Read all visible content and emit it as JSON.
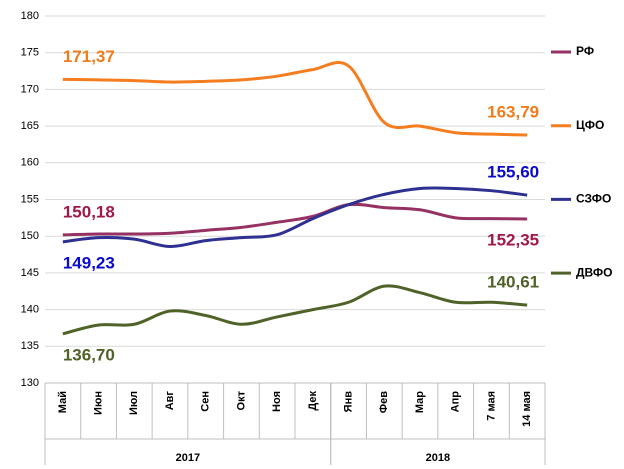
{
  "chart_data": {
    "type": "line",
    "categories": [
      "Май",
      "Июн",
      "Июл",
      "Авг",
      "Сен",
      "Окт",
      "Ноя",
      "Дек",
      "Янв",
      "Фев",
      "Мар",
      "Апр",
      "7 мая",
      "14 мая"
    ],
    "category_groups": [
      {
        "label": "2017",
        "size": 8
      },
      {
        "label": "2018",
        "size": 6
      }
    ],
    "ylim": [
      130,
      180
    ],
    "yticks": [
      130,
      135,
      140,
      145,
      150,
      155,
      160,
      165,
      170,
      175,
      180
    ],
    "grid": true,
    "series": [
      {
        "name": "РФ",
        "color": "#953163",
        "label_color": "#a0174a",
        "values": [
          150.18,
          150.3,
          150.3,
          150.4,
          150.8,
          151.2,
          151.9,
          152.7,
          154.3,
          153.9,
          153.6,
          152.5,
          152.4,
          152.35
        ],
        "value_labels": [
          "150,18",
          null,
          null,
          null,
          null,
          null,
          null,
          null,
          null,
          null,
          null,
          null,
          null,
          "152,35"
        ]
      },
      {
        "name": "ЦФО",
        "color": "#f47d20",
        "label_color": "#f07c1c",
        "values": [
          171.37,
          171.3,
          171.2,
          171.0,
          171.1,
          171.3,
          171.8,
          172.7,
          173.2,
          165.5,
          165.0,
          164.1,
          163.9,
          163.79
        ],
        "value_labels": [
          "171,37",
          null,
          null,
          null,
          null,
          null,
          null,
          null,
          null,
          null,
          null,
          null,
          null,
          "163,79"
        ]
      },
      {
        "name": "СЗФО",
        "color": "#2e3192",
        "label_color": "#0a0acc",
        "values": [
          149.23,
          149.8,
          149.6,
          148.6,
          149.4,
          149.8,
          150.2,
          152.4,
          154.3,
          155.7,
          156.5,
          156.5,
          156.2,
          155.6
        ],
        "value_labels": [
          "149,23",
          null,
          null,
          null,
          null,
          null,
          null,
          null,
          null,
          null,
          null,
          null,
          null,
          "155,60"
        ]
      },
      {
        "name": "ДВФО",
        "color": "#4f6228",
        "label_color": "#4f6228",
        "values": [
          136.7,
          137.9,
          138.0,
          139.8,
          139.2,
          138.0,
          139.0,
          140.0,
          141.0,
          143.2,
          142.3,
          141.0,
          141.0,
          140.61
        ],
        "value_labels": [
          "136,70",
          null,
          null,
          null,
          null,
          null,
          null,
          null,
          null,
          null,
          null,
          null,
          null,
          "140,61"
        ]
      }
    ]
  }
}
